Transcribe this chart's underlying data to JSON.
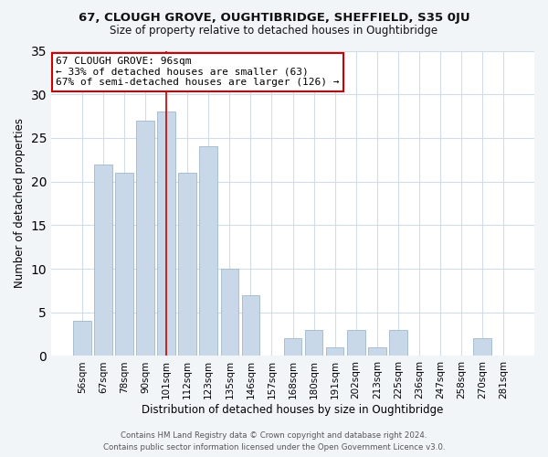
{
  "title": "67, CLOUGH GROVE, OUGHTIBRIDGE, SHEFFIELD, S35 0JU",
  "subtitle": "Size of property relative to detached houses in Oughtibridge",
  "xlabel": "Distribution of detached houses by size in Oughtibridge",
  "ylabel": "Number of detached properties",
  "bar_color": "#c8d8e8",
  "bar_edge_color": "#a0b8cc",
  "categories": [
    "56sqm",
    "67sqm",
    "78sqm",
    "90sqm",
    "101sqm",
    "112sqm",
    "123sqm",
    "135sqm",
    "146sqm",
    "157sqm",
    "168sqm",
    "180sqm",
    "191sqm",
    "202sqm",
    "213sqm",
    "225sqm",
    "236sqm",
    "247sqm",
    "258sqm",
    "270sqm",
    "281sqm"
  ],
  "values": [
    4,
    22,
    21,
    27,
    28,
    21,
    24,
    10,
    7,
    0,
    2,
    3,
    1,
    3,
    1,
    3,
    0,
    0,
    0,
    2,
    0
  ],
  "ylim": [
    0,
    35
  ],
  "yticks": [
    0,
    5,
    10,
    15,
    20,
    25,
    30,
    35
  ],
  "annotation_box_text": "67 CLOUGH GROVE: 96sqm\n← 33% of detached houses are smaller (63)\n67% of semi-detached houses are larger (126) →",
  "annotation_box_color": "#ffffff",
  "annotation_box_edge_color": "#cc0000",
  "marker_bar_index": 4,
  "footer_line1": "Contains HM Land Registry data © Crown copyright and database right 2024.",
  "footer_line2": "Contains public sector information licensed under the Open Government Licence v3.0.",
  "background_color": "#f2f5f8",
  "plot_bg_color": "#ffffff",
  "grid_color": "#d0dce8",
  "marker_color": "#cc0000"
}
